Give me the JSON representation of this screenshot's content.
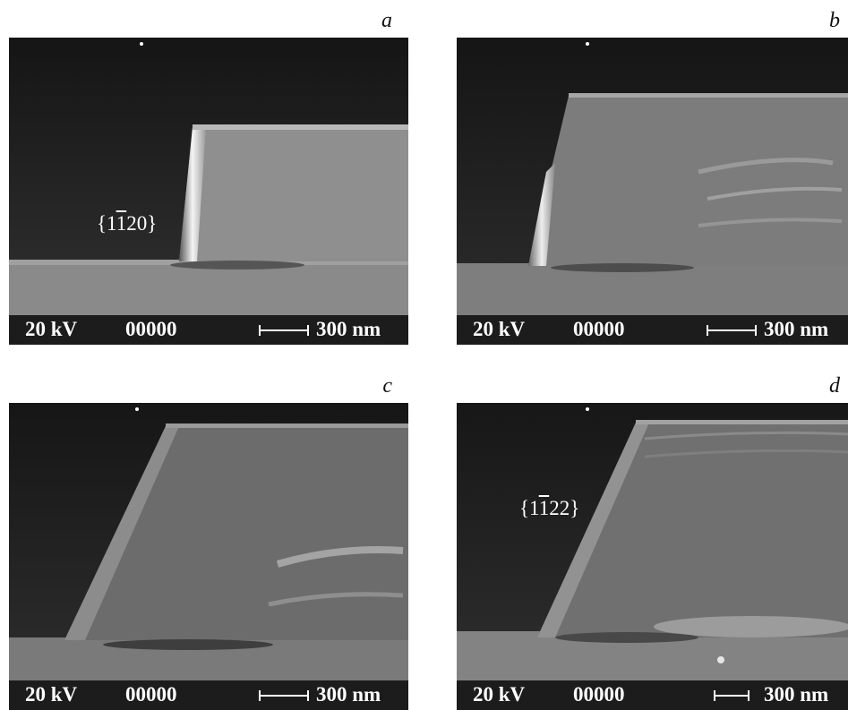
{
  "figure": {
    "panels": [
      {
        "letter": "a",
        "facet_label": {
          "pre": "{1",
          "bar": "1",
          "post": "20}"
        },
        "voltage": "20 kV",
        "code": "00000",
        "scale": "300 nm"
      },
      {
        "letter": "b",
        "voltage": "20 kV",
        "code": "00000",
        "scale": "300 nm"
      },
      {
        "letter": "c",
        "voltage": "20 kV",
        "code": "00000",
        "scale": "300 nm"
      },
      {
        "letter": "d",
        "facet_label": {
          "pre": "{1",
          "bar": "1",
          "post": "22}"
        },
        "voltage": "20 kV",
        "code": "00000",
        "scale": "300 nm"
      }
    ]
  }
}
